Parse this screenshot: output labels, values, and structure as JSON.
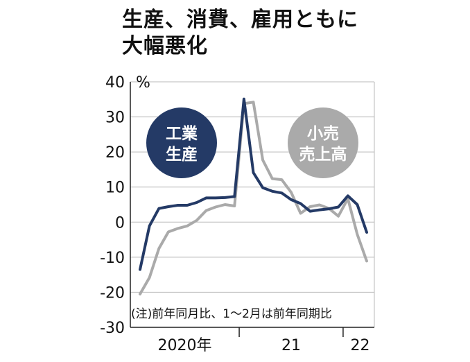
{
  "title": [
    "生産、消費、雇用ともに",
    "大幅悪化"
  ],
  "colors": {
    "industrial": "#243a66",
    "retail": "#aaaaaa",
    "grid": "#b8b8b8",
    "axis": "#222222"
  },
  "chart_data": {
    "type": "line",
    "ylim": [
      -30,
      40
    ],
    "ytick_labels": [
      "40",
      "30",
      "20",
      "10",
      "0",
      "-10",
      "-20",
      "-30"
    ],
    "yunit": "%",
    "xaxis_labels": [
      "2020年",
      "21",
      "22"
    ],
    "note": "(注)前年同月比、1～2月は前年同期比",
    "x": [
      "2020-01/02",
      "2020-03",
      "2020-04",
      "2020-05",
      "2020-06",
      "2020-07",
      "2020-08",
      "2020-09",
      "2020-10",
      "2020-11",
      "2020-12",
      "2021-01/02",
      "2021-03",
      "2021-04",
      "2021-05",
      "2021-06",
      "2021-07",
      "2021-08",
      "2021-09",
      "2021-10",
      "2021-11",
      "2021-12",
      "2022-01/02",
      "2022-03",
      "2022-04"
    ],
    "series": [
      {
        "name": "工業生産",
        "label_lines": [
          "工業",
          "生産"
        ],
        "values": [
          -13.5,
          -1.1,
          3.9,
          4.4,
          4.8,
          4.8,
          5.6,
          6.9,
          6.9,
          7.0,
          7.3,
          35.1,
          14.1,
          9.8,
          8.8,
          8.3,
          6.4,
          5.3,
          3.1,
          3.5,
          3.8,
          4.3,
          7.5,
          5.0,
          -2.9
        ]
      },
      {
        "name": "小売売上高",
        "label_lines": [
          "小売",
          "売上高"
        ],
        "values": [
          -20.5,
          -15.8,
          -7.5,
          -2.8,
          -1.8,
          -1.1,
          0.5,
          3.3,
          4.3,
          5.0,
          4.6,
          33.8,
          34.2,
          17.7,
          12.4,
          12.1,
          8.5,
          2.5,
          4.4,
          4.9,
          3.9,
          1.7,
          6.7,
          -3.5,
          -11.1
        ]
      }
    ]
  }
}
